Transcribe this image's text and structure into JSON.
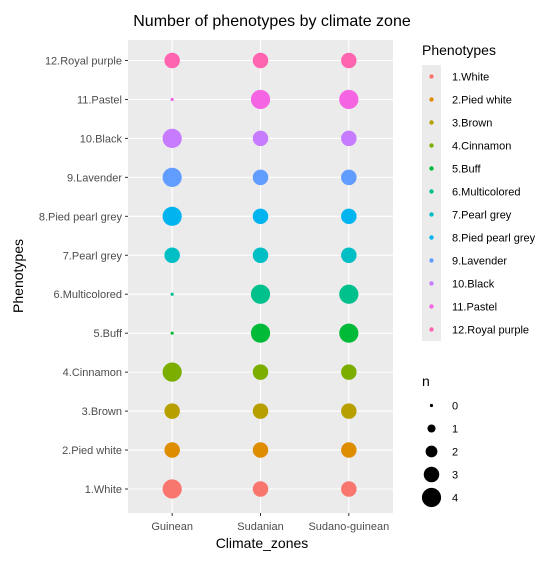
{
  "chart_data": {
    "type": "scatter",
    "title": "Number of phenotypes by climate  zone",
    "xlabel": "Climate_zones",
    "ylabel": "Phenotypes",
    "x_categories": [
      "Guinean",
      "Sudanian",
      "Sudano-guinean"
    ],
    "y_categories": [
      "1.White",
      "2.Pied white",
      "3.Brown",
      "4.Cinnamon",
      "5.Buff",
      "6.Multicolored",
      "7.Pearl grey",
      "8.Pied pearl grey",
      "9.Lavender",
      "10.Black",
      "11.Pastel",
      "12.Royal purple"
    ],
    "series": [
      {
        "name": "1.White",
        "color": "#F8766D",
        "values": [
          4,
          3,
          3
        ]
      },
      {
        "name": "2.Pied white",
        "color": "#DE8C00",
        "values": [
          3,
          3,
          3
        ]
      },
      {
        "name": "3.Brown",
        "color": "#B79F00",
        "values": [
          3,
          3,
          3
        ]
      },
      {
        "name": "4.Cinnamon",
        "color": "#7CAE00",
        "values": [
          4,
          3,
          3
        ]
      },
      {
        "name": "5.Buff",
        "color": "#00BA38",
        "values": [
          0,
          4,
          4
        ]
      },
      {
        "name": "6.Multicolored",
        "color": "#00C08B",
        "values": [
          0,
          4,
          4
        ]
      },
      {
        "name": "7.Pearl grey",
        "color": "#00BFC4",
        "values": [
          3,
          3,
          3
        ]
      },
      {
        "name": "8.Pied pearl grey",
        "color": "#00B4F0",
        "values": [
          4,
          3,
          3
        ]
      },
      {
        "name": "9.Lavender",
        "color": "#619CFF",
        "values": [
          4,
          3,
          3
        ]
      },
      {
        "name": "10.Black",
        "color": "#C77CFF",
        "values": [
          4,
          3,
          3
        ]
      },
      {
        "name": "11.Pastel",
        "color": "#F564E3",
        "values": [
          0,
          4,
          4
        ]
      },
      {
        "name": "12.Royal purple",
        "color": "#FF64B0",
        "values": [
          3,
          3,
          3
        ]
      }
    ],
    "legend_color": {
      "title": "Phenotypes",
      "placement": "right"
    },
    "legend_size": {
      "title": "n",
      "values": [
        0,
        1,
        2,
        3,
        4
      ],
      "placement": "right"
    },
    "grid": true
  }
}
